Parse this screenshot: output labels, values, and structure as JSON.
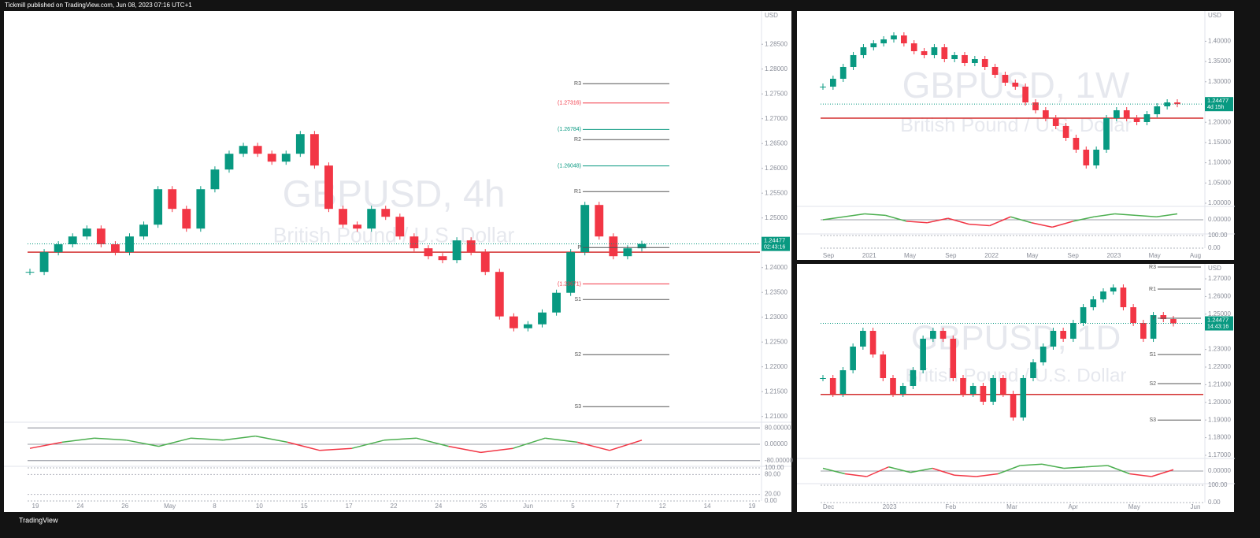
{
  "header": {
    "text": "Tickmill published on TradingView.com, Jun 08, 2023 07:16 UTC+1"
  },
  "footer": {
    "brand": "TradingView"
  },
  "panels": [
    {
      "symbol": "GBPUSD, 4h",
      "description": "British Pound / U.S. Dollar",
      "currency": "USD",
      "price_axis": {
        "ylim": [
          1.209,
          1.2917
        ],
        "ticks": [
          {
            "value": 1.285,
            "label": "1.28500"
          },
          {
            "value": 1.28,
            "label": "1.28000"
          },
          {
            "value": 1.275,
            "label": "1.27500"
          },
          {
            "value": 1.27,
            "label": "1.27000"
          },
          {
            "value": 1.265,
            "label": "1.26500"
          },
          {
            "value": 1.26,
            "label": "1.26000"
          },
          {
            "value": 1.255,
            "label": "1.25500"
          },
          {
            "value": 1.25,
            "label": "1.25000"
          },
          {
            "value": 1.24,
            "label": "1.24000"
          },
          {
            "value": 1.235,
            "label": "1.23500"
          },
          {
            "value": 1.23,
            "label": "1.23000"
          },
          {
            "value": 1.225,
            "label": "1.22500"
          },
          {
            "value": 1.22,
            "label": "1.22000"
          },
          {
            "value": 1.215,
            "label": "1.21500"
          },
          {
            "value": 1.21,
            "label": "1.21000"
          }
        ]
      },
      "closes": [
        1.23913,
        1.2431,
        1.2447,
        1.24627,
        1.24786,
        1.2447,
        1.2431,
        1.24627,
        1.24865,
        1.25579,
        1.25183,
        1.24786,
        1.25579,
        1.25976,
        1.26294,
        1.26452,
        1.26294,
        1.26135,
        1.26294,
        1.2669,
        1.26056,
        1.25183,
        1.24865,
        1.24786,
        1.25183,
        1.25024,
        1.24627,
        1.24389,
        1.2423,
        1.24151,
        1.24548,
        1.2431,
        1.23913,
        1.23016,
        1.22778,
        1.22857,
        1.23095,
        1.23492,
        1.2431,
        1.25262,
        1.24627,
        1.2423,
        1.24389,
        1.24477
      ],
      "poc": 1.2431,
      "last_price": {
        "value": 1.24477,
        "label": "1.24477"
      },
      "countdown": "02:43:16",
      "levels": [
        {
          "value": 1.27706,
          "label": "R3",
          "color": "#555555"
        },
        {
          "value": 1.27316,
          "label": "(1.27316)",
          "color": "#f23645"
        },
        {
          "value": 1.26784,
          "label": "(1.26784)",
          "color": "#089981"
        },
        {
          "value": 1.26579,
          "label": "R2",
          "color": "#555555"
        },
        {
          "value": 1.26048,
          "label": "(1.26048)",
          "color": "#089981"
        },
        {
          "value": 1.25532,
          "label": "R1",
          "color": "#555555"
        },
        {
          "value": 1.24405,
          "label": "P",
          "color": "#555555"
        },
        {
          "value": 1.23671,
          "label": "(1.23671)",
          "color": "#f23645"
        },
        {
          "value": 1.23357,
          "label": "S1",
          "color": "#555555"
        },
        {
          "value": 1.22246,
          "label": "S2",
          "color": "#555555"
        },
        {
          "value": 1.21198,
          "label": "S3",
          "color": "#555555"
        }
      ],
      "time_labels": [
        "19",
        "24",
        "26",
        "May",
        "8",
        "10",
        "15",
        "17",
        "22",
        "24",
        "26",
        "Jun",
        "5",
        "7",
        "12",
        "14",
        "19"
      ],
      "oscillator": {
        "ylim": [
          -100,
          100
        ],
        "ticks": [
          {
            "value": 80,
            "label": "80.00000"
          },
          {
            "value": 0,
            "label": "0.00000"
          },
          {
            "value": -80,
            "label": "-80.00000"
          }
        ],
        "values": [
          -20,
          10,
          30,
          20,
          -10,
          30,
          20,
          40,
          10,
          -30,
          -20,
          20,
          30,
          -10,
          -40,
          -20,
          30,
          10,
          -30,
          20
        ]
      },
      "stoch_ticks": [
        {
          "value": 100,
          "label": "100.00"
        },
        {
          "value": 80,
          "label": "80.00"
        },
        {
          "value": 20,
          "label": "20.00"
        },
        {
          "value": 0,
          "label": "0.00"
        }
      ]
    },
    {
      "symbol": "GBPUSD, 1W",
      "description": "British Pound / U.S. Dollar",
      "currency": "USD",
      "price_axis": {
        "ylim": [
          1.0,
          1.4747
        ],
        "ticks": [
          {
            "value": 1.4,
            "label": "1.40000"
          },
          {
            "value": 1.35,
            "label": "1.35000"
          },
          {
            "value": 1.3,
            "label": "1.30000"
          },
          {
            "value": 1.2,
            "label": "1.20000"
          },
          {
            "value": 1.15,
            "label": "1.15000"
          },
          {
            "value": 1.1,
            "label": "1.10000"
          },
          {
            "value": 1.05,
            "label": "1.05000"
          },
          {
            "value": 1.0,
            "label": "1.00000"
          }
        ]
      },
      "closes": [
        1.2879,
        1.3074,
        1.3366,
        1.3658,
        1.3852,
        1.3949,
        1.4047,
        1.4144,
        1.3949,
        1.3755,
        1.3658,
        1.3852,
        1.356,
        1.3658,
        1.3463,
        1.356,
        1.3366,
        1.3171,
        1.2977,
        1.2879,
        1.249,
        1.2296,
        1.2101,
        1.1907,
        1.1615,
        1.1323,
        1.0934,
        1.1323,
        1.2101,
        1.2296,
        1.2101,
        1.2004,
        1.2198,
        1.2393,
        1.249,
        1.24477
      ],
      "poc": 1.2101,
      "last_price": {
        "value": 1.24477,
        "label": "1.24477"
      },
      "countdown": "4d 15h",
      "time_labels": [
        "Sep",
        "2021",
        "May",
        "Sep",
        "2022",
        "May",
        "Sep",
        "2023",
        "May",
        "Aug"
      ],
      "oscillator": {
        "ylim": [
          -40,
          40
        ],
        "ticks": [
          {
            "value": 0,
            "label": "0.00000"
          }
        ],
        "values": [
          0,
          10,
          20,
          15,
          -5,
          -10,
          5,
          -15,
          -20,
          10,
          -10,
          -25,
          -5,
          10,
          20,
          15,
          10,
          20
        ]
      },
      "stoch_ticks": [
        {
          "value": 100,
          "label": "100.00"
        },
        {
          "value": 0,
          "label": "0.00"
        }
      ]
    },
    {
      "symbol": "GBPUSD, 1D",
      "description": "British Pound / U.S. Dollar",
      "currency": "USD",
      "price_axis": {
        "ylim": [
          1.1691,
          1.2785
        ],
        "ticks": [
          {
            "value": 1.27,
            "label": "1.27000"
          },
          {
            "value": 1.26,
            "label": "1.26000"
          },
          {
            "value": 1.25,
            "label": "1.25000"
          },
          {
            "value": 1.23,
            "label": "1.23000"
          },
          {
            "value": 1.22,
            "label": "1.22000"
          },
          {
            "value": 1.21,
            "label": "1.21000"
          },
          {
            "value": 1.2,
            "label": "1.20000"
          },
          {
            "value": 1.19,
            "label": "1.19000"
          },
          {
            "value": 1.18,
            "label": "1.18000"
          },
          {
            "value": 1.17,
            "label": "1.17000"
          }
        ]
      },
      "closes": [
        1.21375,
        1.20482,
        1.21821,
        1.23161,
        1.24054,
        1.22714,
        1.21375,
        1.20482,
        1.20929,
        1.21821,
        1.23607,
        1.24054,
        1.23607,
        1.21375,
        1.20482,
        1.20929,
        1.20036,
        1.21375,
        1.20482,
        1.19143,
        1.21375,
        1.22268,
        1.23161,
        1.24054,
        1.23607,
        1.245,
        1.25393,
        1.25839,
        1.26286,
        1.26509,
        1.25393,
        1.245,
        1.23607,
        1.24946,
        1.24723,
        1.24477
      ],
      "poc": 1.2045,
      "last_price": {
        "value": 1.24477,
        "label": "1.24477"
      },
      "countdown": "14:43:16",
      "levels": [
        {
          "value": 1.2767,
          "label": "R3",
          "color": "#555555"
        },
        {
          "value": 1.2642,
          "label": "R1",
          "color": "#555555"
        },
        {
          "value": 1.2477,
          "label": "P",
          "color": "#555555"
        },
        {
          "value": 1.2271,
          "label": "S1",
          "color": "#555555"
        },
        {
          "value": 1.2106,
          "label": "S2",
          "color": "#555555"
        },
        {
          "value": 1.19,
          "label": "S3",
          "color": "#555555"
        }
      ],
      "time_labels": [
        "Dec",
        "2023",
        "Feb",
        "Mar",
        "Apr",
        "May",
        "Jun"
      ],
      "oscillator": {
        "ylim": [
          -40,
          40
        ],
        "ticks": [
          {
            "value": 0,
            "label": "0.00000"
          }
        ],
        "values": [
          10,
          -10,
          -20,
          15,
          -5,
          10,
          -15,
          -20,
          -10,
          20,
          25,
          10,
          15,
          20,
          -10,
          -20,
          5
        ]
      },
      "stoch_ticks": [
        {
          "value": 100,
          "label": "100.00"
        },
        {
          "value": 0,
          "label": "0.00"
        }
      ]
    }
  ]
}
